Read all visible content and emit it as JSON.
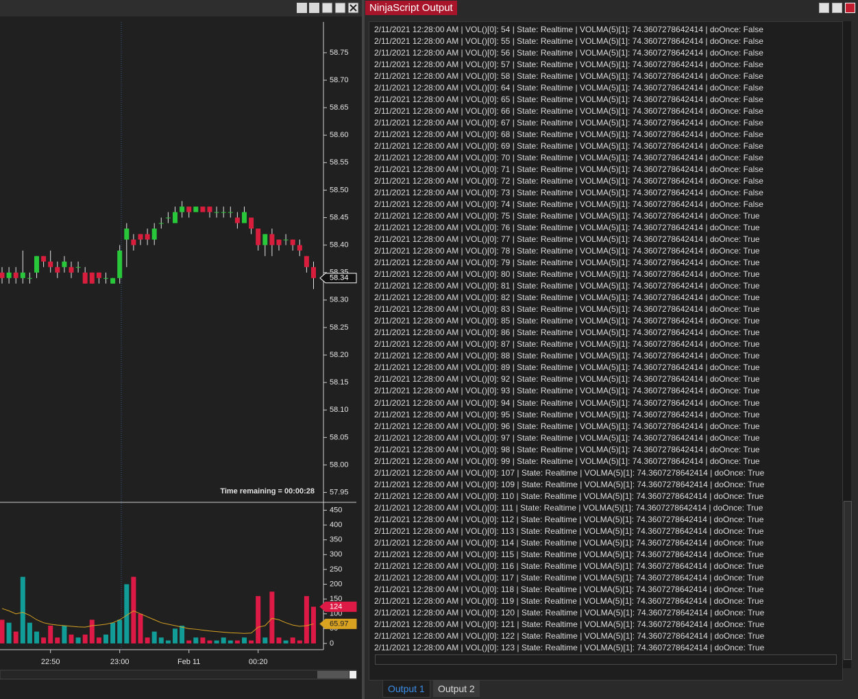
{
  "chart_data": {
    "type": "candlestick",
    "categories": [
      null,
      null,
      null,
      null,
      null,
      null,
      null,
      "22:50",
      null,
      null,
      null,
      null,
      null,
      null,
      null,
      null,
      null,
      "23:00",
      null,
      null,
      null,
      null,
      null,
      null,
      null,
      null,
      null,
      "Feb 11",
      null,
      null,
      null,
      null,
      null,
      null,
      null,
      null,
      null,
      "00:20",
      null,
      null,
      null,
      null,
      null,
      null,
      null,
      null
    ],
    "open": [
      58.35,
      58.34,
      58.35,
      58.34,
      58.34,
      58.35,
      58.38,
      58.37,
      58.36,
      58.36,
      58.36,
      58.36,
      58.35,
      58.35,
      58.35,
      58.34,
      58.33,
      58.34,
      58.41,
      58.41,
      58.42,
      58.42,
      58.41,
      58.44,
      58.45,
      58.44,
      58.46,
      58.47,
      58.46,
      58.47,
      58.47,
      58.46,
      58.46,
      58.46,
      58.45,
      58.44,
      58.45,
      58.43,
      58.4,
      58.42,
      58.41,
      58.41,
      58.41,
      58.4,
      58.38,
      58.36
    ],
    "high": [
      58.36,
      58.36,
      58.36,
      58.39,
      58.35,
      58.38,
      58.38,
      58.39,
      58.37,
      58.38,
      58.37,
      58.37,
      58.36,
      58.35,
      58.35,
      58.35,
      58.34,
      58.4,
      58.44,
      58.42,
      58.42,
      58.43,
      58.44,
      58.45,
      58.46,
      58.47,
      58.48,
      58.47,
      58.47,
      58.47,
      58.47,
      58.47,
      58.47,
      58.47,
      58.46,
      58.47,
      58.45,
      58.43,
      58.42,
      58.43,
      58.41,
      58.42,
      58.41,
      58.41,
      58.38,
      58.37
    ],
    "low": [
      58.33,
      58.33,
      58.33,
      58.33,
      58.33,
      58.34,
      58.36,
      58.35,
      58.34,
      58.35,
      58.34,
      58.35,
      58.33,
      58.33,
      58.33,
      58.33,
      58.33,
      58.33,
      58.36,
      58.39,
      58.4,
      58.4,
      58.4,
      58.43,
      58.44,
      58.44,
      58.45,
      58.45,
      58.46,
      58.46,
      58.45,
      58.45,
      58.45,
      58.45,
      58.43,
      58.44,
      58.42,
      58.39,
      58.38,
      58.38,
      58.39,
      58.4,
      58.39,
      58.38,
      58.35,
      58.32
    ],
    "close": [
      58.34,
      58.35,
      58.34,
      58.35,
      58.34,
      58.38,
      58.37,
      58.36,
      58.35,
      58.37,
      58.35,
      58.36,
      58.33,
      58.33,
      58.34,
      58.34,
      58.34,
      58.39,
      58.43,
      58.4,
      58.41,
      58.41,
      58.43,
      58.44,
      58.45,
      58.46,
      58.47,
      58.46,
      58.47,
      58.46,
      58.46,
      58.46,
      58.46,
      58.46,
      58.44,
      58.46,
      58.43,
      58.4,
      58.42,
      58.4,
      58.4,
      58.41,
      58.4,
      58.39,
      58.36,
      58.34
    ],
    "up_color": "#29c83a",
    "down_color": "#d81e3c",
    "ylim": [
      57.932,
      58.806
    ],
    "yticks": [
      58.75,
      {
        "value": 58.7,
        "label": "58.70"
      },
      58.65,
      {
        "value": 58.6,
        "label": "58.60"
      },
      58.55,
      {
        "value": 58.5,
        "label": "58.50"
      },
      58.45,
      {
        "value": 58.4,
        "label": "58.40"
      },
      58.35,
      {
        "value": 58.3,
        "label": "58.30"
      },
      58.25,
      {
        "value": 58.2,
        "label": "58.20"
      },
      58.15,
      {
        "value": 58.1,
        "label": "58.10"
      },
      58.05,
      {
        "value": 58.0,
        "label": "58.00"
      },
      57.95
    ],
    "last_price": 58.34,
    "annotation": "Time remaining = 00:00:28",
    "volume": {
      "values": [
        80,
        70,
        40,
        225,
        70,
        40,
        20,
        60,
        20,
        60,
        30,
        20,
        30,
        80,
        20,
        30,
        70,
        80,
        200,
        225,
        100,
        20,
        40,
        20,
        10,
        50,
        60,
        10,
        20,
        20,
        10,
        10,
        20,
        10,
        10,
        20,
        10,
        160,
        20,
        175,
        20,
        10,
        20,
        10,
        160,
        124
      ],
      "ma": [
        118,
        110,
        100,
        105,
        95,
        80,
        70,
        65,
        62,
        60,
        58,
        56,
        55,
        60,
        62,
        65,
        70,
        80,
        95,
        110,
        100,
        90,
        80,
        70,
        65,
        60,
        55,
        50,
        48,
        45,
        42,
        40,
        38,
        36,
        35,
        34,
        35,
        55,
        60,
        85,
        80,
        70,
        62,
        58,
        60,
        65.97
      ],
      "up_color": "#119c97",
      "down_color": "#dc1a45",
      "ma_color": "#d9a321",
      "ylim": [
        -21,
        472
      ],
      "yticks": [
        0,
        50,
        100,
        150,
        200,
        250,
        300,
        350,
        400,
        450
      ],
      "last_volume": 124,
      "last_ma": 65.97
    }
  },
  "output": {
    "title": "NinjaScript Output",
    "tabs": [
      "Output 1",
      "Output 2"
    ],
    "lines": [
      "2/11/2021 12:28:00 AM | VOL()[0]: 54 | State: Realtime | VOLMA(5)[1]: 74.3607278642414 | doOnce: False",
      "2/11/2021 12:28:00 AM | VOL()[0]: 55 | State: Realtime | VOLMA(5)[1]: 74.3607278642414 | doOnce: False",
      "2/11/2021 12:28:00 AM | VOL()[0]: 56 | State: Realtime | VOLMA(5)[1]: 74.3607278642414 | doOnce: False",
      "2/11/2021 12:28:00 AM | VOL()[0]: 57 | State: Realtime | VOLMA(5)[1]: 74.3607278642414 | doOnce: False",
      "2/11/2021 12:28:00 AM | VOL()[0]: 58 | State: Realtime | VOLMA(5)[1]: 74.3607278642414 | doOnce: False",
      "2/11/2021 12:28:00 AM | VOL()[0]: 64 | State: Realtime | VOLMA(5)[1]: 74.3607278642414 | doOnce: False",
      "2/11/2021 12:28:00 AM | VOL()[0]: 65 | State: Realtime | VOLMA(5)[1]: 74.3607278642414 | doOnce: False",
      "2/11/2021 12:28:00 AM | VOL()[0]: 66 | State: Realtime | VOLMA(5)[1]: 74.3607278642414 | doOnce: False",
      "2/11/2021 12:28:00 AM | VOL()[0]: 67 | State: Realtime | VOLMA(5)[1]: 74.3607278642414 | doOnce: False",
      "2/11/2021 12:28:00 AM | VOL()[0]: 68 | State: Realtime | VOLMA(5)[1]: 74.3607278642414 | doOnce: False",
      "2/11/2021 12:28:00 AM | VOL()[0]: 69 | State: Realtime | VOLMA(5)[1]: 74.3607278642414 | doOnce: False",
      "2/11/2021 12:28:00 AM | VOL()[0]: 70 | State: Realtime | VOLMA(5)[1]: 74.3607278642414 | doOnce: False",
      "2/11/2021 12:28:00 AM | VOL()[0]: 71 | State: Realtime | VOLMA(5)[1]: 74.3607278642414 | doOnce: False",
      "2/11/2021 12:28:00 AM | VOL()[0]: 72 | State: Realtime | VOLMA(5)[1]: 74.3607278642414 | doOnce: False",
      "2/11/2021 12:28:00 AM | VOL()[0]: 73 | State: Realtime | VOLMA(5)[1]: 74.3607278642414 | doOnce: False",
      "2/11/2021 12:28:00 AM | VOL()[0]: 74 | State: Realtime | VOLMA(5)[1]: 74.3607278642414 | doOnce: False",
      "2/11/2021 12:28:00 AM | VOL()[0]: 75 | State: Realtime | VOLMA(5)[1]: 74.3607278642414 | doOnce: True",
      "2/11/2021 12:28:00 AM | VOL()[0]: 76 | State: Realtime | VOLMA(5)[1]: 74.3607278642414 | doOnce: True",
      "2/11/2021 12:28:00 AM | VOL()[0]: 77 | State: Realtime | VOLMA(5)[1]: 74.3607278642414 | doOnce: True",
      "2/11/2021 12:28:00 AM | VOL()[0]: 78 | State: Realtime | VOLMA(5)[1]: 74.3607278642414 | doOnce: True",
      "2/11/2021 12:28:00 AM | VOL()[0]: 79 | State: Realtime | VOLMA(5)[1]: 74.3607278642414 | doOnce: True",
      "2/11/2021 12:28:00 AM | VOL()[0]: 80 | State: Realtime | VOLMA(5)[1]: 74.3607278642414 | doOnce: True",
      "2/11/2021 12:28:00 AM | VOL()[0]: 81 | State: Realtime | VOLMA(5)[1]: 74.3607278642414 | doOnce: True",
      "2/11/2021 12:28:00 AM | VOL()[0]: 82 | State: Realtime | VOLMA(5)[1]: 74.3607278642414 | doOnce: True",
      "2/11/2021 12:28:00 AM | VOL()[0]: 83 | State: Realtime | VOLMA(5)[1]: 74.3607278642414 | doOnce: True",
      "2/11/2021 12:28:00 AM | VOL()[0]: 85 | State: Realtime | VOLMA(5)[1]: 74.3607278642414 | doOnce: True",
      "2/11/2021 12:28:00 AM | VOL()[0]: 86 | State: Realtime | VOLMA(5)[1]: 74.3607278642414 | doOnce: True",
      "2/11/2021 12:28:00 AM | VOL()[0]: 87 | State: Realtime | VOLMA(5)[1]: 74.3607278642414 | doOnce: True",
      "2/11/2021 12:28:00 AM | VOL()[0]: 88 | State: Realtime | VOLMA(5)[1]: 74.3607278642414 | doOnce: True",
      "2/11/2021 12:28:00 AM | VOL()[0]: 89 | State: Realtime | VOLMA(5)[1]: 74.3607278642414 | doOnce: True",
      "2/11/2021 12:28:00 AM | VOL()[0]: 92 | State: Realtime | VOLMA(5)[1]: 74.3607278642414 | doOnce: True",
      "2/11/2021 12:28:00 AM | VOL()[0]: 93 | State: Realtime | VOLMA(5)[1]: 74.3607278642414 | doOnce: True",
      "2/11/2021 12:28:00 AM | VOL()[0]: 94 | State: Realtime | VOLMA(5)[1]: 74.3607278642414 | doOnce: True",
      "2/11/2021 12:28:00 AM | VOL()[0]: 95 | State: Realtime | VOLMA(5)[1]: 74.3607278642414 | doOnce: True",
      "2/11/2021 12:28:00 AM | VOL()[0]: 96 | State: Realtime | VOLMA(5)[1]: 74.3607278642414 | doOnce: True",
      "2/11/2021 12:28:00 AM | VOL()[0]: 97 | State: Realtime | VOLMA(5)[1]: 74.3607278642414 | doOnce: True",
      "2/11/2021 12:28:00 AM | VOL()[0]: 98 | State: Realtime | VOLMA(5)[1]: 74.3607278642414 | doOnce: True",
      "2/11/2021 12:28:00 AM | VOL()[0]: 99 | State: Realtime | VOLMA(5)[1]: 74.3607278642414 | doOnce: True",
      "2/11/2021 12:28:00 AM | VOL()[0]: 107 | State: Realtime | VOLMA(5)[1]: 74.3607278642414 | doOnce: True",
      "2/11/2021 12:28:00 AM | VOL()[0]: 109 | State: Realtime | VOLMA(5)[1]: 74.3607278642414 | doOnce: True",
      "2/11/2021 12:28:00 AM | VOL()[0]: 110 | State: Realtime | VOLMA(5)[1]: 74.3607278642414 | doOnce: True",
      "2/11/2021 12:28:00 AM | VOL()[0]: 111 | State: Realtime | VOLMA(5)[1]: 74.3607278642414 | doOnce: True",
      "2/11/2021 12:28:00 AM | VOL()[0]: 112 | State: Realtime | VOLMA(5)[1]: 74.3607278642414 | doOnce: True",
      "2/11/2021 12:28:00 AM | VOL()[0]: 113 | State: Realtime | VOLMA(5)[1]: 74.3607278642414 | doOnce: True",
      "2/11/2021 12:28:00 AM | VOL()[0]: 114 | State: Realtime | VOLMA(5)[1]: 74.3607278642414 | doOnce: True",
      "2/11/2021 12:28:00 AM | VOL()[0]: 115 | State: Realtime | VOLMA(5)[1]: 74.3607278642414 | doOnce: True",
      "2/11/2021 12:28:00 AM | VOL()[0]: 116 | State: Realtime | VOLMA(5)[1]: 74.3607278642414 | doOnce: True",
      "2/11/2021 12:28:00 AM | VOL()[0]: 117 | State: Realtime | VOLMA(5)[1]: 74.3607278642414 | doOnce: True",
      "2/11/2021 12:28:00 AM | VOL()[0]: 118 | State: Realtime | VOLMA(5)[1]: 74.3607278642414 | doOnce: True",
      "2/11/2021 12:28:00 AM | VOL()[0]: 119 | State: Realtime | VOLMA(5)[1]: 74.3607278642414 | doOnce: True",
      "2/11/2021 12:28:00 AM | VOL()[0]: 120 | State: Realtime | VOLMA(5)[1]: 74.3607278642414 | doOnce: True",
      "2/11/2021 12:28:00 AM | VOL()[0]: 121 | State: Realtime | VOLMA(5)[1]: 74.3607278642414 | doOnce: True",
      "2/11/2021 12:28:00 AM | VOL()[0]: 122 | State: Realtime | VOLMA(5)[1]: 74.3607278642414 | doOnce: True",
      "2/11/2021 12:28:00 AM | VOL()[0]: 123 | State: Realtime | VOLMA(5)[1]: 74.3607278642414 | doOnce: True"
    ]
  }
}
